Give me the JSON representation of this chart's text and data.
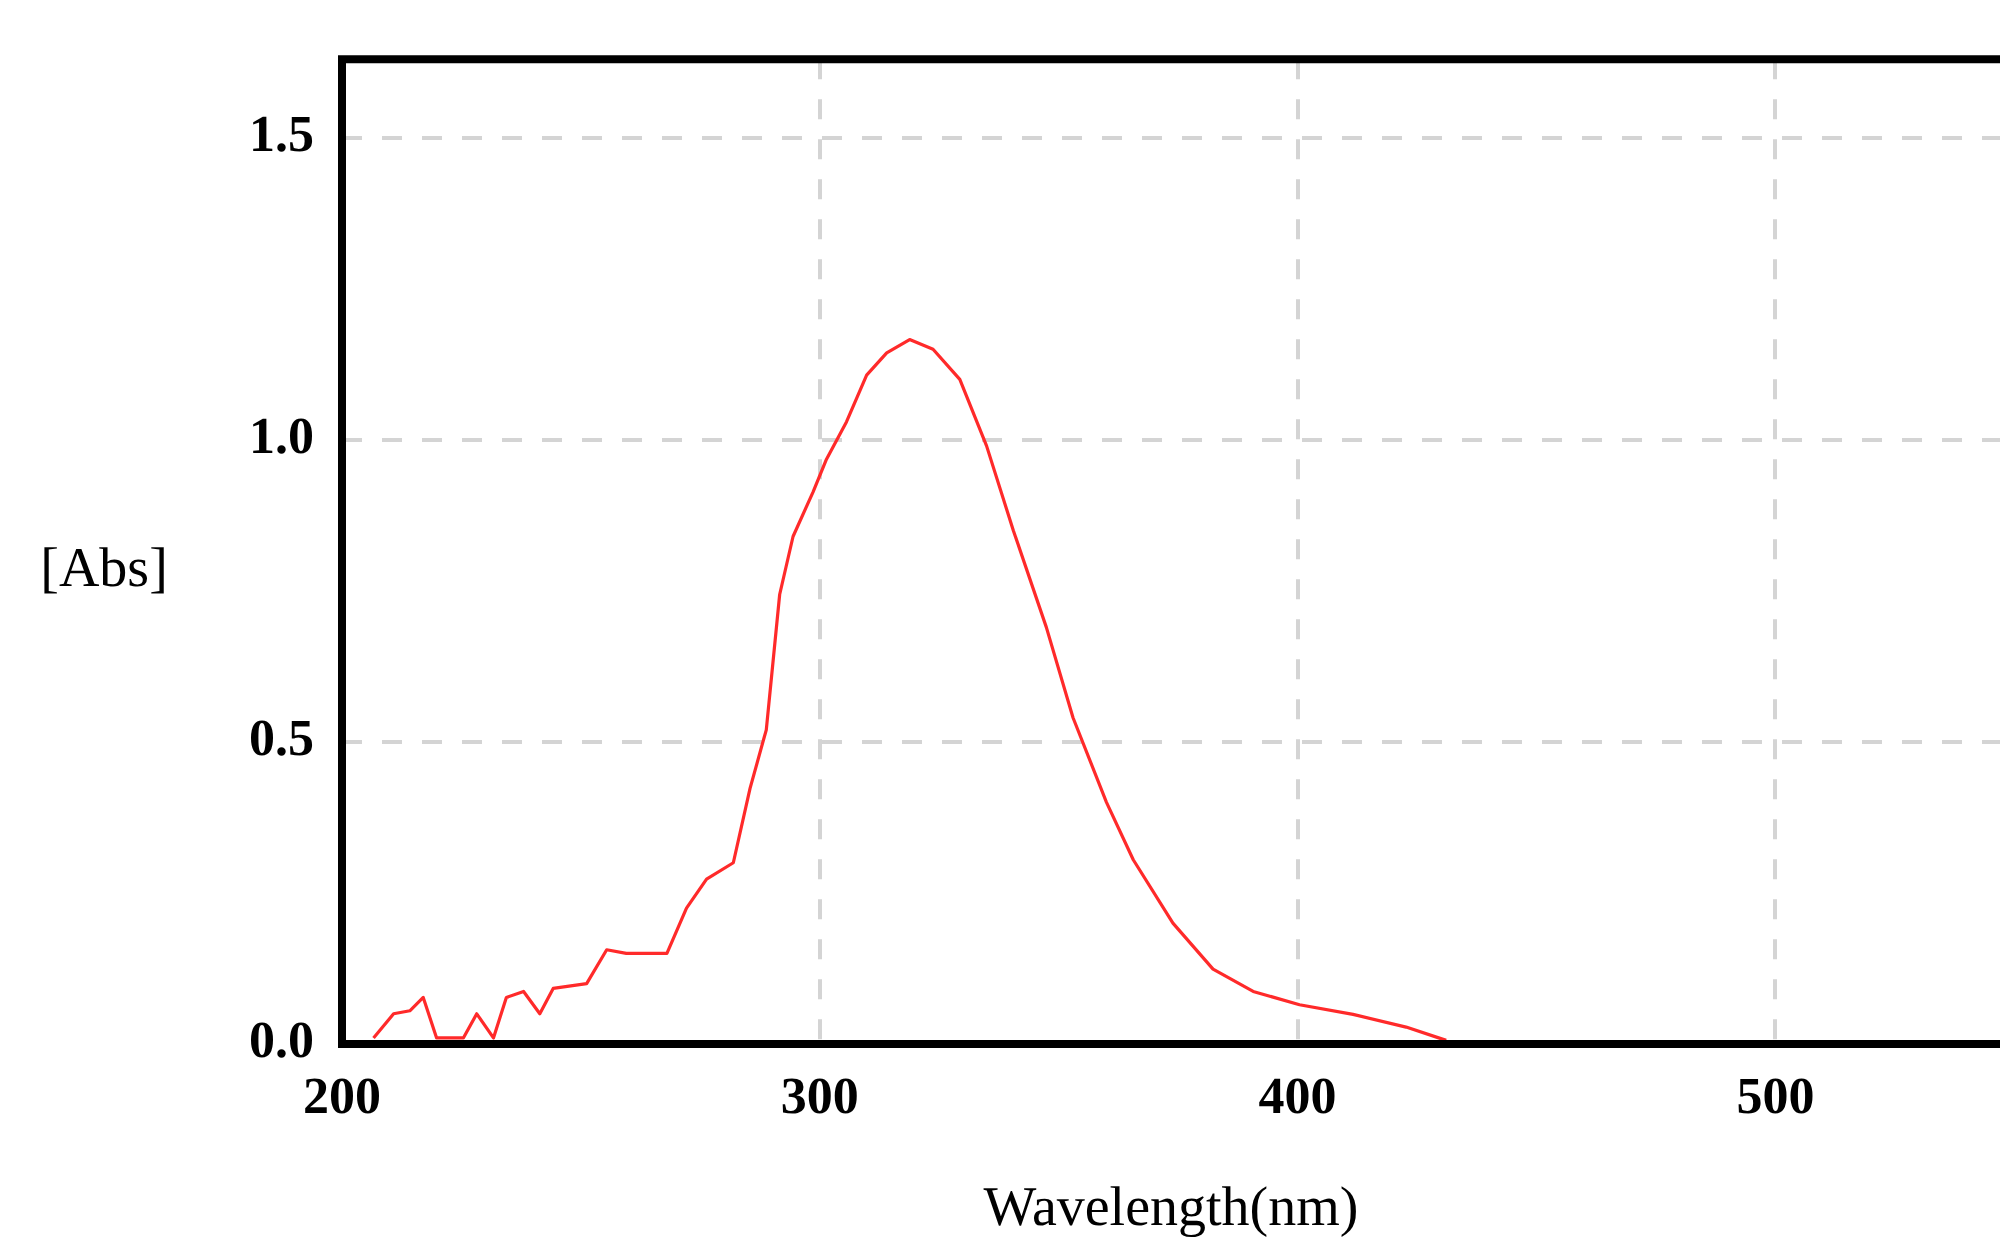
{
  "chart_data": {
    "type": "line",
    "xlabel": "Wavelength(nm)",
    "ylabel": "[Abs]",
    "xlim": [
      200,
      547
    ],
    "ylim": [
      0,
      1.63
    ],
    "xticks": [
      200,
      300,
      400,
      500
    ],
    "yticks": [
      {
        "value": 0,
        "label": "0.0"
      },
      {
        "value": 0.5,
        "label": "0.5"
      },
      {
        "value": 1,
        "label": "1.0"
      },
      {
        "value": 1.5,
        "label": "1.5"
      }
    ],
    "grid": true,
    "legend": false,
    "marker": "none",
    "line_style": "solid",
    "series": [
      {
        "color": "#ff2a2a",
        "x": [
          206.6,
          210.8,
          214.2,
          217,
          219.8,
          225.4,
          228.2,
          231.7,
          234.4,
          238,
          241.4,
          244.2,
          251.2,
          255.4,
          259.5,
          268,
          272.1,
          276.3,
          281.9,
          285.4,
          288.8,
          291.6,
          294.4,
          298.6,
          301.4,
          305.6,
          309.8,
          314,
          318.8,
          323.7,
          329.3,
          334.9,
          340.5,
          347.4,
          353,
          360,
          365.6,
          373.9,
          382.3,
          390.7,
          400.4,
          411.6,
          422.7,
          431.1
        ],
        "values": [
          0.01,
          0.05,
          0.055,
          0.077,
          0.01,
          0.01,
          0.05,
          0.01,
          0.077,
          0.087,
          0.05,
          0.092,
          0.1,
          0.156,
          0.15,
          0.15,
          0.225,
          0.273,
          0.3,
          0.423,
          0.52,
          0.744,
          0.84,
          0.914,
          0.968,
          1.03,
          1.107,
          1.144,
          1.166,
          1.15,
          1.1,
          0.99,
          0.85,
          0.69,
          0.54,
          0.4,
          0.305,
          0.2,
          0.124,
          0.087,
          0.065,
          0.049,
          0.028,
          0.006
        ]
      }
    ]
  }
}
